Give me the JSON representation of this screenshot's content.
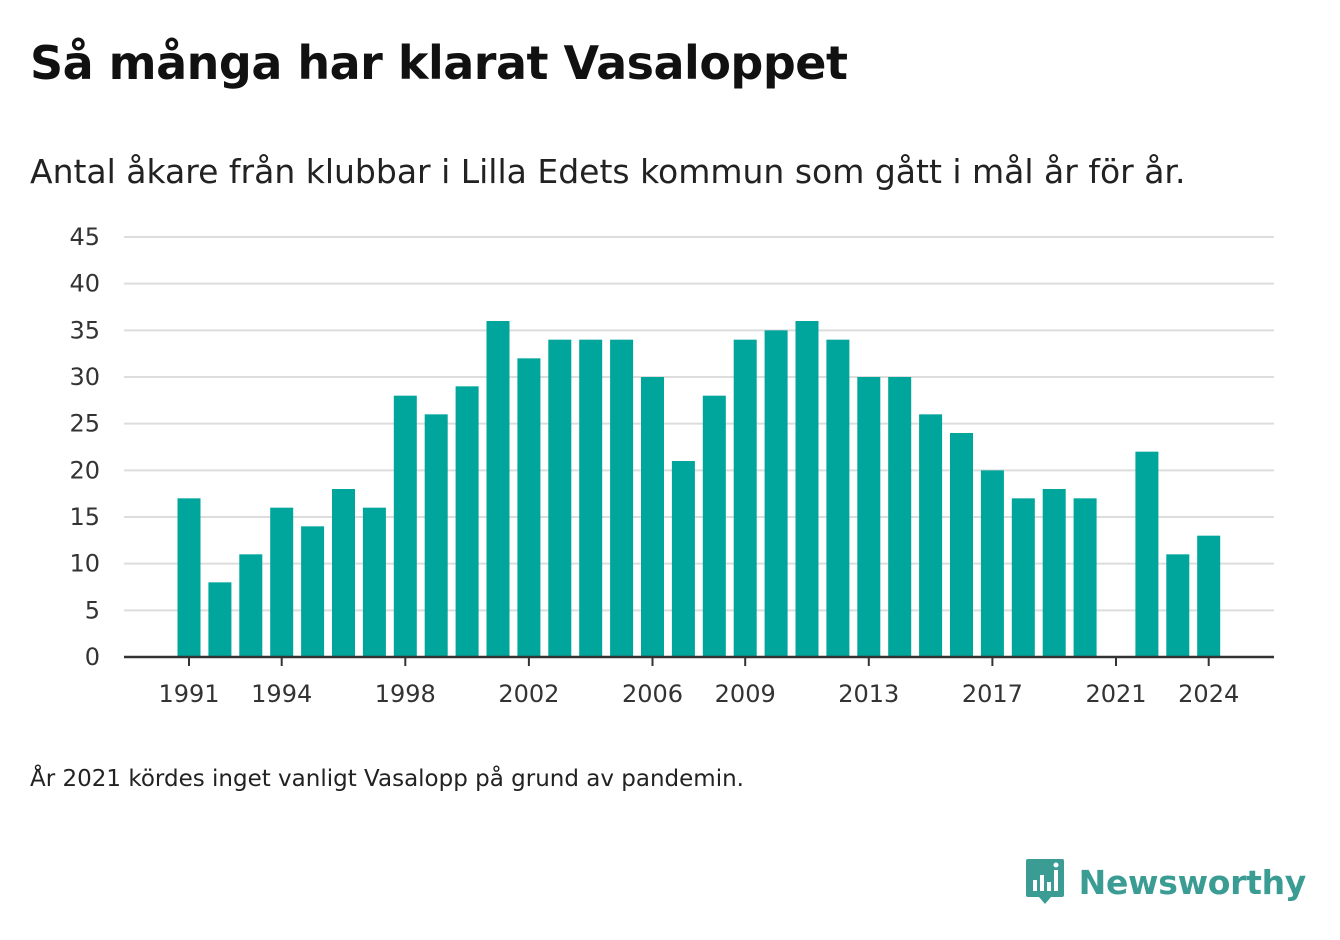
{
  "title": "Så många har klarat Vasaloppet",
  "subtitle": "Antal åkare från klubbar i Lilla Edets kommun som gått i mål år för år.",
  "note": "År 2021 kördes inget vanligt Vasalopp på grund av pandemin.",
  "brand": {
    "name": "Newsworthy",
    "icon": "newsworthy-logo-icon",
    "color": "#3a9c93"
  },
  "colors": {
    "bar": "#00a59b",
    "grid": "#dddddd",
    "axis": "#333333"
  },
  "chart_data": {
    "type": "bar",
    "categories": [
      1991,
      1992,
      1993,
      1994,
      1995,
      1996,
      1997,
      1998,
      1999,
      2000,
      2001,
      2002,
      2003,
      2004,
      2005,
      2006,
      2007,
      2008,
      2009,
      2010,
      2011,
      2012,
      2013,
      2014,
      2015,
      2016,
      2017,
      2018,
      2019,
      2020,
      2021,
      2022,
      2023,
      2024
    ],
    "values": [
      17,
      8,
      11,
      16,
      14,
      18,
      16,
      28,
      26,
      29,
      36,
      32,
      34,
      34,
      34,
      30,
      21,
      28,
      34,
      35,
      36,
      34,
      30,
      30,
      26,
      24,
      20,
      17,
      18,
      17,
      null,
      22,
      11,
      13
    ],
    "x_tick_labels": [
      "1991",
      "1994",
      "1998",
      "2002",
      "2006",
      "2009",
      "2013",
      "2017",
      "2021",
      "2024"
    ],
    "y_ticks": [
      0,
      5,
      10,
      15,
      20,
      25,
      30,
      35,
      40,
      45
    ],
    "ylim": [
      0,
      45
    ],
    "xlabel": "",
    "ylabel": "",
    "grid": true
  }
}
